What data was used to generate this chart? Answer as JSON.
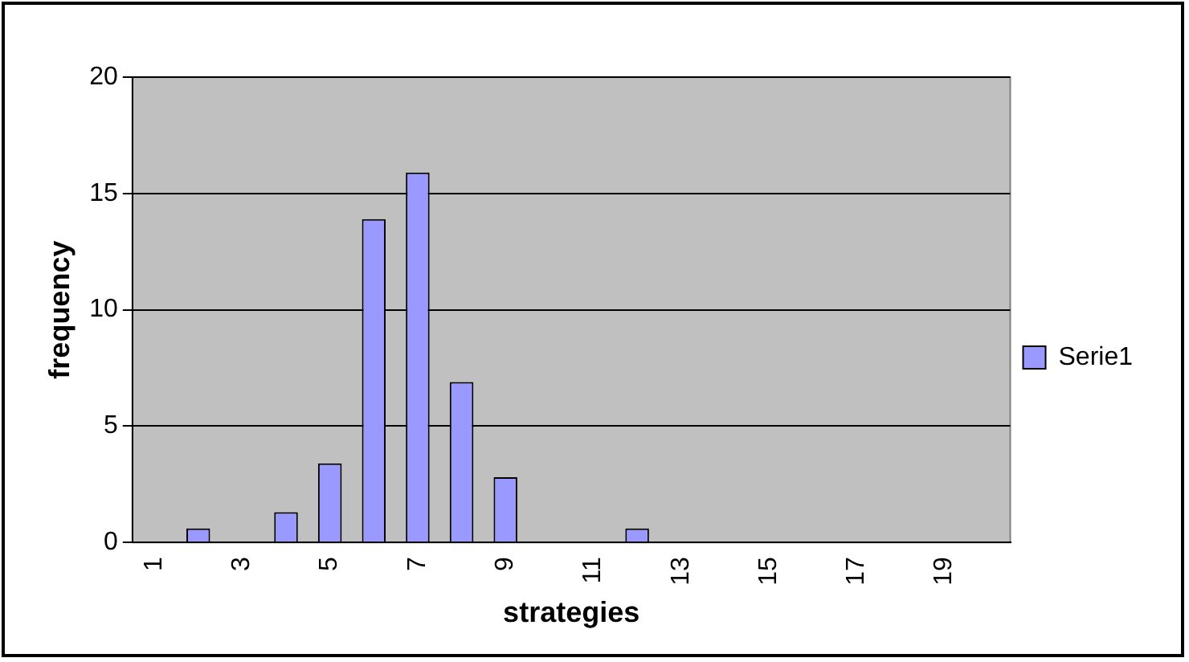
{
  "chart_data": {
    "type": "bar",
    "xlabel": "strategies",
    "ylabel": "frequency",
    "categories": [
      "1",
      null,
      "3",
      null,
      "5",
      null,
      "7",
      null,
      "9",
      null,
      "11",
      null,
      "13",
      null,
      "15",
      null,
      "17",
      null,
      "19",
      null
    ],
    "series": [
      {
        "name": "Serie1",
        "color": "#9999ff",
        "values": [
          0,
          0.6,
          0,
          1.3,
          3.4,
          13.9,
          15.9,
          6.9,
          2.8,
          0,
          0,
          0.6,
          0,
          0,
          0,
          0,
          0,
          0,
          0,
          0
        ]
      }
    ],
    "ylim": [
      0,
      20
    ],
    "yticks": [
      0,
      5,
      10,
      15,
      20
    ],
    "grid": "y",
    "legend": "right"
  }
}
